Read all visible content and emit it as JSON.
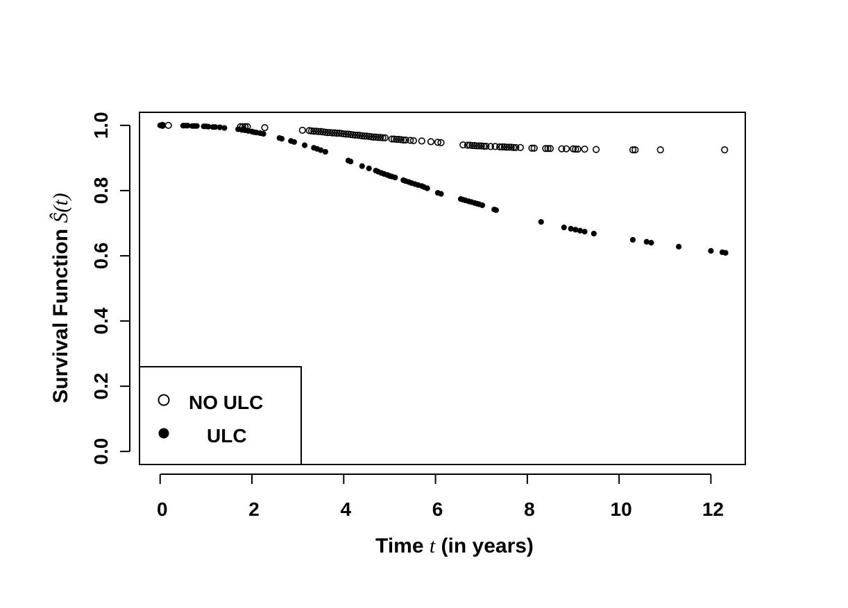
{
  "chart_data": {
    "type": "scatter",
    "xlabel": {
      "pre": "Time ",
      "var": "t",
      "post": " (in years)"
    },
    "ylabel": {
      "pre": "Survival Function ",
      "var": "Ŝ(t)"
    },
    "xlim": [
      -0.45,
      12.75
    ],
    "ylim": [
      -0.04,
      1.04
    ],
    "x_ticks": [
      "0",
      "2",
      "4",
      "6",
      "8",
      "10",
      "12"
    ],
    "y_ticks": [
      "0.0",
      "0.2",
      "0.4",
      "0.6",
      "0.8",
      "1.0"
    ],
    "legend": {
      "position": "bottom-left"
    },
    "series": [
      {
        "name": "NO ULC",
        "marker": "open-circle",
        "x": [
          0.05,
          0.18,
          1.75,
          1.8,
          1.85,
          1.9,
          2.28,
          3.1,
          3.25,
          3.3,
          3.35,
          3.4,
          3.45,
          3.5,
          3.55,
          3.6,
          3.65,
          3.7,
          3.75,
          3.8,
          3.85,
          3.9,
          3.95,
          4.0,
          4.05,
          4.1,
          4.15,
          4.2,
          4.25,
          4.3,
          4.35,
          4.4,
          4.45,
          4.5,
          4.55,
          4.6,
          4.65,
          4.7,
          4.75,
          4.8,
          4.85,
          4.9,
          5.05,
          5.1,
          5.15,
          5.2,
          5.25,
          5.3,
          5.35,
          5.45,
          5.52,
          5.7,
          5.9,
          6.05,
          6.12,
          6.6,
          6.7,
          6.75,
          6.8,
          6.85,
          6.9,
          6.95,
          7.0,
          7.05,
          7.1,
          7.2,
          7.3,
          7.4,
          7.45,
          7.5,
          7.55,
          7.6,
          7.65,
          7.7,
          7.75,
          7.85,
          8.1,
          8.15,
          8.4,
          8.45,
          8.5,
          8.75,
          8.85,
          9.0,
          9.05,
          9.1,
          9.25,
          9.5,
          10.3,
          10.35,
          10.9,
          12.3
        ],
        "y": [
          1.0,
          1.0,
          0.996,
          0.996,
          0.996,
          0.996,
          0.993,
          0.985,
          0.984,
          0.983,
          0.982,
          0.982,
          0.981,
          0.981,
          0.98,
          0.979,
          0.978,
          0.978,
          0.977,
          0.977,
          0.976,
          0.976,
          0.975,
          0.974,
          0.973,
          0.973,
          0.972,
          0.971,
          0.97,
          0.97,
          0.969,
          0.968,
          0.967,
          0.967,
          0.966,
          0.965,
          0.964,
          0.964,
          0.963,
          0.963,
          0.962,
          0.962,
          0.958,
          0.958,
          0.957,
          0.957,
          0.956,
          0.955,
          0.955,
          0.954,
          0.953,
          0.952,
          0.95,
          0.948,
          0.947,
          0.94,
          0.939,
          0.939,
          0.938,
          0.938,
          0.937,
          0.937,
          0.937,
          0.936,
          0.936,
          0.935,
          0.935,
          0.934,
          0.934,
          0.934,
          0.933,
          0.933,
          0.933,
          0.932,
          0.932,
          0.932,
          0.93,
          0.93,
          0.929,
          0.929,
          0.929,
          0.928,
          0.928,
          0.928,
          0.927,
          0.927,
          0.927,
          0.926,
          0.925,
          0.925,
          0.925,
          0.925
        ]
      },
      {
        "name": "ULC",
        "marker": "filled-circle",
        "x": [
          0.0,
          0.05,
          0.5,
          0.55,
          0.6,
          0.7,
          0.75,
          0.8,
          0.95,
          1.0,
          1.05,
          1.15,
          1.2,
          1.3,
          1.4,
          1.7,
          1.78,
          1.85,
          1.92,
          2.0,
          2.05,
          2.1,
          2.18,
          2.25,
          2.6,
          2.65,
          2.85,
          2.92,
          3.15,
          3.35,
          3.42,
          3.5,
          3.6,
          4.1,
          4.15,
          4.4,
          4.55,
          4.7,
          4.75,
          4.82,
          4.88,
          4.95,
          5.0,
          5.05,
          5.12,
          5.3,
          5.35,
          5.42,
          5.48,
          5.55,
          5.62,
          5.7,
          5.75,
          5.82,
          6.05,
          6.12,
          6.55,
          6.6,
          6.65,
          6.72,
          6.78,
          6.85,
          6.9,
          6.95,
          7.02,
          7.28,
          7.32,
          8.3,
          8.8,
          8.95,
          9.05,
          9.15,
          9.25,
          9.45,
          10.3,
          10.6,
          10.7,
          11.3,
          12.0,
          12.25,
          12.32
        ],
        "y": [
          1.0,
          1.0,
          0.999,
          0.999,
          0.999,
          0.998,
          0.998,
          0.998,
          0.997,
          0.997,
          0.996,
          0.995,
          0.995,
          0.994,
          0.992,
          0.988,
          0.986,
          0.985,
          0.983,
          0.981,
          0.979,
          0.978,
          0.976,
          0.974,
          0.961,
          0.959,
          0.952,
          0.949,
          0.939,
          0.931,
          0.928,
          0.924,
          0.919,
          0.892,
          0.889,
          0.875,
          0.868,
          0.861,
          0.858,
          0.854,
          0.851,
          0.848,
          0.845,
          0.843,
          0.84,
          0.832,
          0.829,
          0.826,
          0.823,
          0.82,
          0.817,
          0.814,
          0.811,
          0.807,
          0.793,
          0.79,
          0.774,
          0.772,
          0.77,
          0.767,
          0.765,
          0.762,
          0.76,
          0.758,
          0.755,
          0.742,
          0.74,
          0.704,
          0.687,
          0.683,
          0.68,
          0.677,
          0.674,
          0.668,
          0.649,
          0.643,
          0.64,
          0.628,
          0.615,
          0.611,
          0.609
        ]
      }
    ]
  }
}
